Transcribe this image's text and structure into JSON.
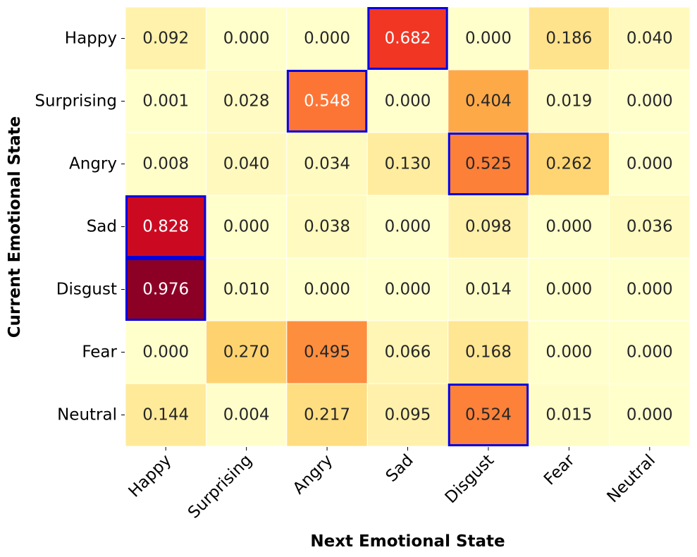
{
  "chart_data": {
    "type": "heatmap",
    "title": "",
    "xlabel": "Next Emotional State",
    "ylabel": "Current Emotional State",
    "x_categories": [
      "Happy",
      "Surprising",
      "Angry",
      "Sad",
      "Disgust",
      "Fear",
      "Neutral"
    ],
    "y_categories": [
      "Happy",
      "Surprising",
      "Angry",
      "Sad",
      "Disgust",
      "Fear",
      "Neutral"
    ],
    "values": [
      [
        0.092,
        0.0,
        0.0,
        0.682,
        0.0,
        0.186,
        0.04
      ],
      [
        0.001,
        0.028,
        0.548,
        0.0,
        0.404,
        0.019,
        0.0
      ],
      [
        0.008,
        0.04,
        0.034,
        0.13,
        0.525,
        0.262,
        0.0
      ],
      [
        0.828,
        0.0,
        0.038,
        0.0,
        0.098,
        0.0,
        0.036
      ],
      [
        0.976,
        0.01,
        0.0,
        0.0,
        0.014,
        0.0,
        0.0
      ],
      [
        0.0,
        0.27,
        0.495,
        0.066,
        0.168,
        0.0,
        0.0
      ],
      [
        0.144,
        0.004,
        0.217,
        0.095,
        0.524,
        0.015,
        0.0
      ]
    ],
    "value_labels": [
      [
        "0.092",
        "0.000",
        "0.000",
        "0.682",
        "0.000",
        "0.186",
        "0.040"
      ],
      [
        "0.001",
        "0.028",
        "0.548",
        "0.000",
        "0.404",
        "0.019",
        "0.000"
      ],
      [
        "0.008",
        "0.040",
        "0.034",
        "0.130",
        "0.525",
        "0.262",
        "0.000"
      ],
      [
        "0.828",
        "0.000",
        "0.038",
        "0.000",
        "0.098",
        "0.000",
        "0.036"
      ],
      [
        "0.976",
        "0.010",
        "0.000",
        "0.000",
        "0.014",
        "0.000",
        "0.000"
      ],
      [
        "0.000",
        "0.270",
        "0.495",
        "0.066",
        "0.168",
        "0.000",
        "0.000"
      ],
      [
        "0.144",
        "0.004",
        "0.217",
        "0.095",
        "0.524",
        "0.015",
        "0.000"
      ]
    ],
    "highlighted_cells": [
      [
        0,
        3
      ],
      [
        1,
        2
      ],
      [
        2,
        4
      ],
      [
        3,
        0
      ],
      [
        4,
        0
      ],
      [
        6,
        4
      ]
    ],
    "colormap": "YlOrRd",
    "vmin": 0,
    "vmax": 1,
    "colorbar": false,
    "highlight_color": "#0000e0",
    "grid_line_color": "#ffffff",
    "text_dark_color": "#262626",
    "text_light_color": "#ffffff"
  }
}
